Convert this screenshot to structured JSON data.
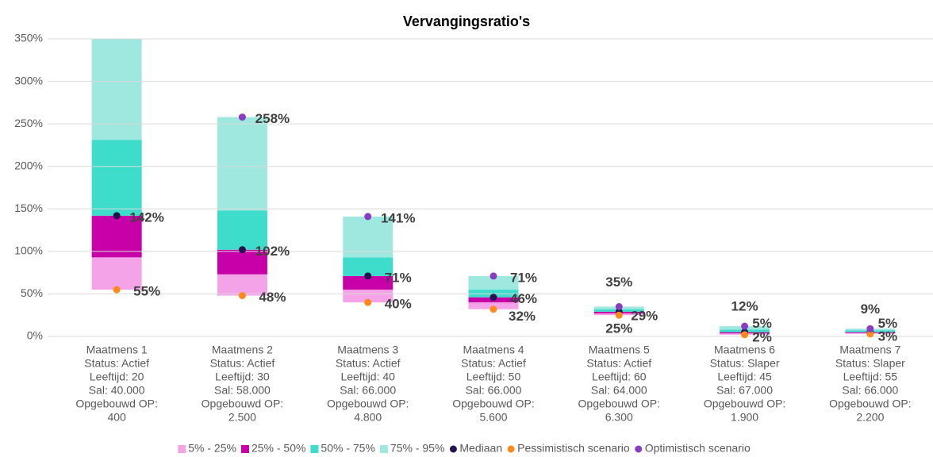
{
  "chart_data": {
    "type": "bar",
    "title": "Vervangingsratio's",
    "categories": [
      [
        "Maatmens 1",
        "Status: Actief",
        "Leeftijd: 20",
        "Sal: 40.000",
        "Opgebouwd OP:",
        "400"
      ],
      [
        "Maatmens 2",
        "Status: Actief",
        "Leeftijd: 30",
        "Sal: 58.000",
        "Opgebouwd OP:",
        "2.500"
      ],
      [
        "Maatmens 3",
        "Status: Actief",
        "Leeftijd: 40",
        "Sal: 66.000",
        "Opgebouwd OP:",
        "4.800"
      ],
      [
        "Maatmens 4",
        "Status: Actief",
        "Leeftijd: 50",
        "Sal: 66.000",
        "Opgebouwd OP:",
        "5.600"
      ],
      [
        "Maatmens 5",
        "Status: Actief",
        "Leeftijd: 60",
        "Sal: 64.000",
        "Opgebouwd OP:",
        "6.300"
      ],
      [
        "Maatmens 6",
        "Status: Slaper",
        "Leeftijd: 45",
        "Sal: 67.000",
        "Opgebouwd OP:",
        "1.900"
      ],
      [
        "Maatmens 7",
        "Status: Slaper",
        "Leeftijd: 55",
        "Sal: 66.000",
        "Opgebouwd OP:",
        "2.200"
      ]
    ],
    "series": [
      {
        "name": "5% - 25%",
        "color": "#f5a3e8",
        "values": [
          38,
          25,
          15,
          8,
          2,
          1.5,
          1
        ]
      },
      {
        "name": "25% - 50%",
        "color": "#c800a8",
        "values": [
          49,
          29,
          16,
          6,
          2,
          1.5,
          1
        ]
      },
      {
        "name": "50% - 75%",
        "color": "#3ddccb",
        "values": [
          89,
          46,
          22,
          9,
          3,
          3,
          2
        ]
      },
      {
        "name": "75% - 95%",
        "color": "#9fe8e0",
        "values": [
          170,
          110,
          48,
          16,
          3,
          4,
          2
        ]
      },
      {
        "name": "Mediaan",
        "type": "scatter",
        "color": "#24134f",
        "values": [
          142,
          102,
          71,
          46,
          29,
          5,
          5
        ],
        "value_labels": [
          "142%",
          "102%",
          "71%",
          "46%",
          "29%",
          "5%",
          "5%"
        ]
      },
      {
        "name": "Pessimistisch scenario",
        "type": "scatter",
        "color": "#ff8a1c",
        "values": [
          55,
          48,
          40,
          32,
          25,
          2,
          3
        ],
        "value_labels": [
          "55%",
          "48%",
          "40%",
          "32%",
          "25%",
          "2%",
          "3%"
        ]
      },
      {
        "name": "Optimistisch scenario",
        "type": "scatter",
        "color": "#8a3dbf",
        "values": [
          null,
          258,
          141,
          71,
          35,
          12,
          9
        ],
        "value_labels": [
          null,
          "258%",
          "141%",
          "71%",
          "35%",
          "12%",
          "9%"
        ]
      }
    ],
    "ylim": [
      0,
      350
    ],
    "yticks": [
      {
        "value": 0,
        "label": "0%"
      },
      {
        "value": 50,
        "label": "50%"
      },
      {
        "value": 100,
        "label": "100%"
      },
      {
        "value": 150,
        "label": "150%"
      },
      {
        "value": 200,
        "label": "200%"
      },
      {
        "value": 250,
        "label": "250%"
      },
      {
        "value": 300,
        "label": "300%"
      },
      {
        "value": 350,
        "label": "350%"
      }
    ],
    "grid": true
  }
}
